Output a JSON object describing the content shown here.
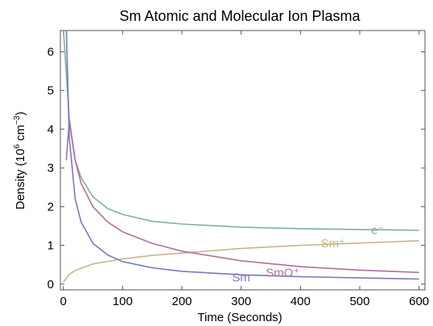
{
  "chart_data": {
    "type": "line",
    "title": "Sm Atomic and Molecular Ion Plasma",
    "xlabel": "Time (Seconds)",
    "ylabel": "Density (10^6 cm^-3)",
    "ylabel_parts": {
      "main": "Density (10",
      "exp1": "6",
      "mid": " cm",
      "exp2": "−3",
      "end": ")"
    },
    "xlim": [
      -5,
      610
    ],
    "ylim": [
      -0.15,
      6.55
    ],
    "xticks": [
      0,
      100,
      200,
      300,
      400,
      500,
      600
    ],
    "yticks": [
      0,
      1,
      2,
      3,
      4,
      5,
      6
    ],
    "grid": false,
    "legend": "inline labels",
    "series": [
      {
        "name": "e⁻",
        "color": "#7fb0a0",
        "x": [
          0,
          10,
          20,
          30,
          50,
          75,
          100,
          150,
          200,
          300,
          400,
          500,
          600
        ],
        "y": [
          6.6,
          4.3,
          3.2,
          2.75,
          2.25,
          1.95,
          1.8,
          1.62,
          1.55,
          1.47,
          1.43,
          1.41,
          1.39
        ]
      },
      {
        "name": "Sm⁺",
        "color": "#c9b48a",
        "x": [
          0,
          5,
          10,
          20,
          50,
          100,
          150,
          200,
          300,
          400,
          500,
          600
        ],
        "y": [
          0.05,
          0.15,
          0.25,
          0.35,
          0.52,
          0.65,
          0.74,
          0.8,
          0.92,
          1.0,
          1.06,
          1.12
        ]
      },
      {
        "name": "SmO⁺",
        "color": "#b0709a",
        "x": [
          5,
          10,
          20,
          30,
          50,
          75,
          100,
          150,
          200,
          300,
          400,
          500,
          600
        ],
        "y": [
          3.2,
          4.2,
          3.2,
          2.6,
          2.0,
          1.6,
          1.35,
          1.05,
          0.85,
          0.6,
          0.45,
          0.36,
          0.3
        ]
      },
      {
        "name": "Sm",
        "color": "#7a78c0",
        "x": [
          5,
          10,
          20,
          30,
          50,
          75,
          100,
          150,
          200,
          300,
          400,
          500,
          600
        ],
        "y": [
          6.6,
          3.8,
          2.2,
          1.6,
          1.05,
          0.75,
          0.58,
          0.42,
          0.33,
          0.24,
          0.19,
          0.16,
          0.13
        ]
      }
    ],
    "series_label_positions": [
      {
        "name": "e⁻",
        "x": 530,
        "y": 1.4
      },
      {
        "name": "Sm⁺",
        "x": 455,
        "y": 1.05
      },
      {
        "name": "SmO⁺",
        "x": 370,
        "y": 0.3
      },
      {
        "name": "Sm",
        "x": 300,
        "y": 0.17
      }
    ]
  }
}
